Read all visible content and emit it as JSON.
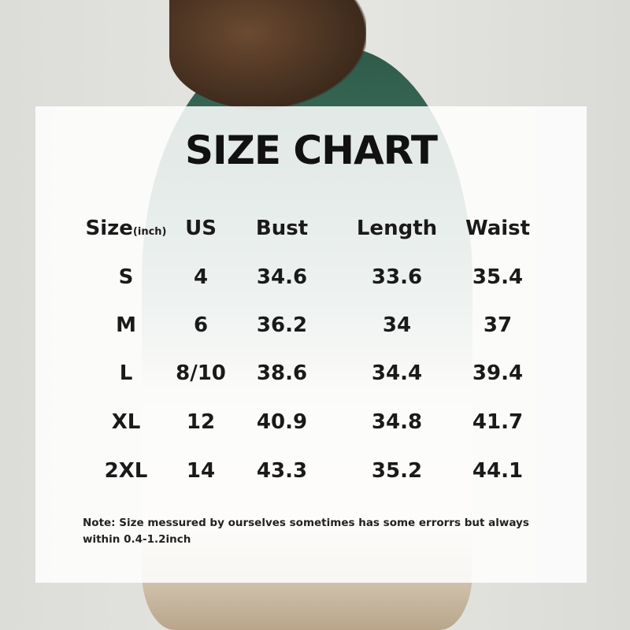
{
  "title": "SIZE CHART",
  "table": {
    "headers": [
      "Size",
      "US",
      "Bust",
      "Length",
      "Waist"
    ],
    "size_unit": "(inch)",
    "rows": [
      [
        "S",
        "4",
        "34.6",
        "33.6",
        "35.4"
      ],
      [
        "M",
        "6",
        "36.2",
        "34",
        "37"
      ],
      [
        "L",
        "8/10",
        "38.6",
        "34.4",
        "39.4"
      ],
      [
        "XL",
        "12",
        "40.9",
        "34.8",
        "41.7"
      ],
      [
        "2XL",
        "14",
        "43.3",
        "35.2",
        "44.1"
      ]
    ]
  },
  "note": "Note:  Size messured by ourselves sometimes has some errorrs but always within 0.4-1.2inch"
}
